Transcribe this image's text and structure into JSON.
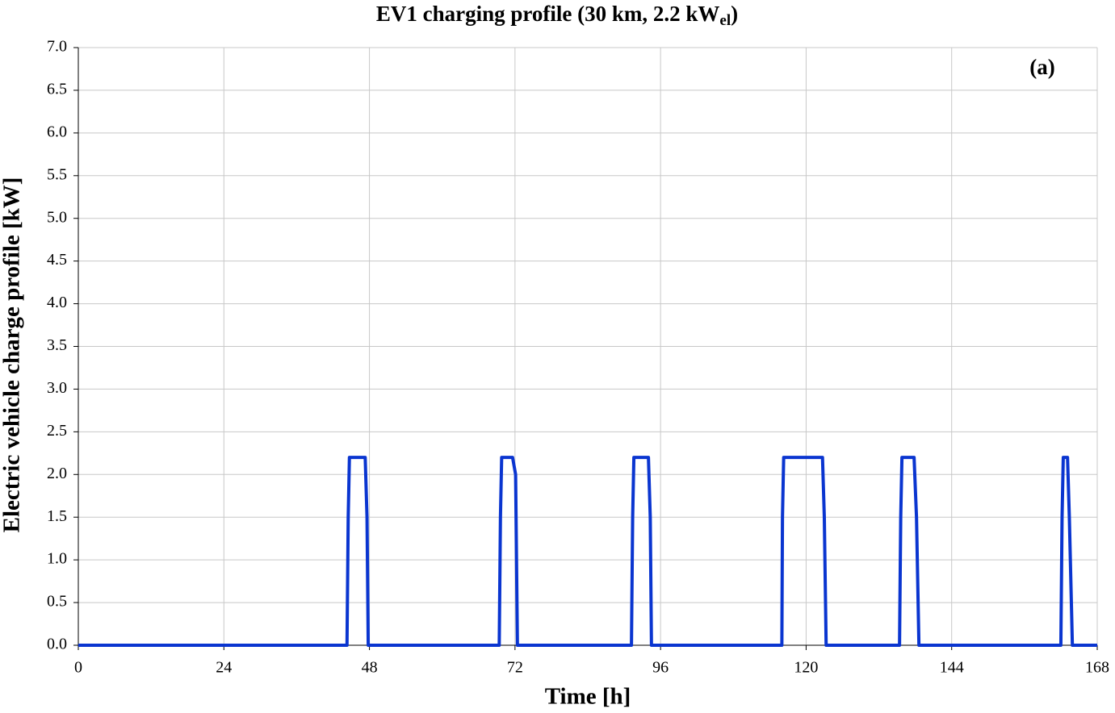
{
  "chart_data": {
    "type": "line",
    "title": [
      "EV1 charging profile (30 km, 2.2 kW",
      "el",
      ")"
    ],
    "annotation": "(a)",
    "x_label": "Time [h]",
    "y_label": "Electric vehicle charge profile [kW]",
    "xlim": [
      0,
      168
    ],
    "xticks": [
      0,
      24,
      48,
      72,
      96,
      120,
      144,
      168
    ],
    "ylim": [
      0,
      7
    ],
    "yticks": [
      {
        "value": 0,
        "label": "0.0"
      },
      {
        "value": 0.5,
        "label": "0.5"
      },
      {
        "value": 1,
        "label": "1.0"
      },
      {
        "value": 1.5,
        "label": "1.5"
      },
      {
        "value": 2,
        "label": "2.0"
      },
      {
        "value": 2.5,
        "label": "2.5"
      },
      {
        "value": 3,
        "label": "3.0"
      },
      {
        "value": 3.5,
        "label": "3.5"
      },
      {
        "value": 4,
        "label": "4.0"
      },
      {
        "value": 4.5,
        "label": "4.5"
      },
      {
        "value": 5,
        "label": "5.0"
      },
      {
        "value": 5.5,
        "label": "5.5"
      },
      {
        "value": 6,
        "label": "6.0"
      },
      {
        "value": 6.5,
        "label": "6.5"
      },
      {
        "value": 7,
        "label": "7.0"
      }
    ],
    "grid": true,
    "x": [
      0,
      44.3,
      44.5,
      44.7,
      47.3,
      47.6,
      47.8,
      69.4,
      69.6,
      69.8,
      71.6,
      72.1,
      72.4,
      91.2,
      91.4,
      91.6,
      94.0,
      94.3,
      94.5,
      116.0,
      116.1,
      116.3,
      122.7,
      123.0,
      123.3,
      135.4,
      135.6,
      135.8,
      137.8,
      138.2,
      138.6,
      162.0,
      162.2,
      162.4,
      163.1,
      163.4,
      163.9,
      168
    ],
    "series": [
      {
        "color": "#0a35d0",
        "values": [
          0,
          0,
          1.5,
          2.2,
          2.2,
          1.5,
          0,
          0,
          1.5,
          2.2,
          2.2,
          2.0,
          0,
          0,
          1.5,
          2.2,
          2.2,
          1.5,
          0,
          0,
          1.5,
          2.2,
          2.2,
          1.5,
          0,
          0,
          1.5,
          2.2,
          2.2,
          1.5,
          0,
          0,
          1.5,
          2.2,
          2.2,
          1.5,
          0,
          0
        ]
      }
    ]
  }
}
